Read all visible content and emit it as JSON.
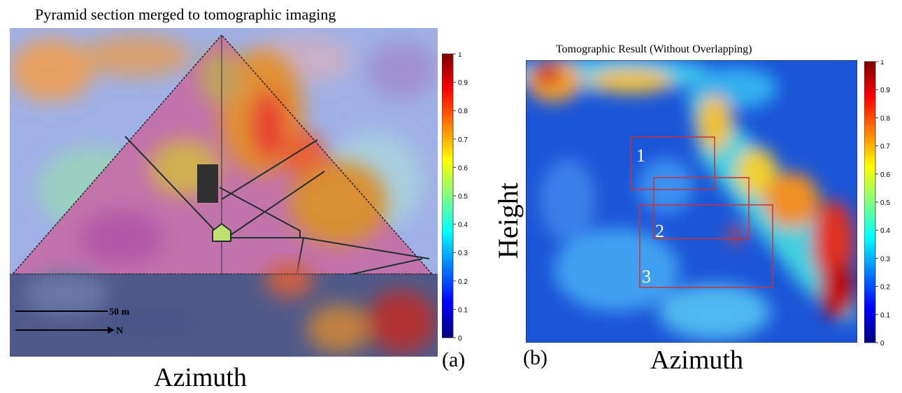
{
  "figure": {
    "panel_a": {
      "title": "Pyramid section merged to tomographic imaging",
      "xlabel": "Azimuth",
      "panel_label": "(a)",
      "scale_label": "50 m",
      "direction_label": "N",
      "colorbar_ticks": [
        "1",
        "0.9",
        "0.8",
        "0.7",
        "0.6",
        "0.5",
        "0.4",
        "0.3",
        "0.2",
        "0.1",
        "0"
      ]
    },
    "panel_b": {
      "title": "Tomographic Result (Without Overlapping)",
      "xlabel": "Azimuth",
      "ylabel": "Height",
      "panel_label": "(b)",
      "regions": [
        "1",
        "2",
        "3"
      ],
      "colorbar_ticks": [
        "1",
        "0.9",
        "0.8",
        "0.7",
        "0.6",
        "0.5",
        "0.4",
        "0.3",
        "0.2",
        "0.1",
        "0"
      ]
    },
    "colormap": [
      "#00007f",
      "#0000ff",
      "#007fff",
      "#00ffff",
      "#7fff7f",
      "#ffff00",
      "#ff7f00",
      "#ff0000",
      "#7f0000"
    ]
  }
}
